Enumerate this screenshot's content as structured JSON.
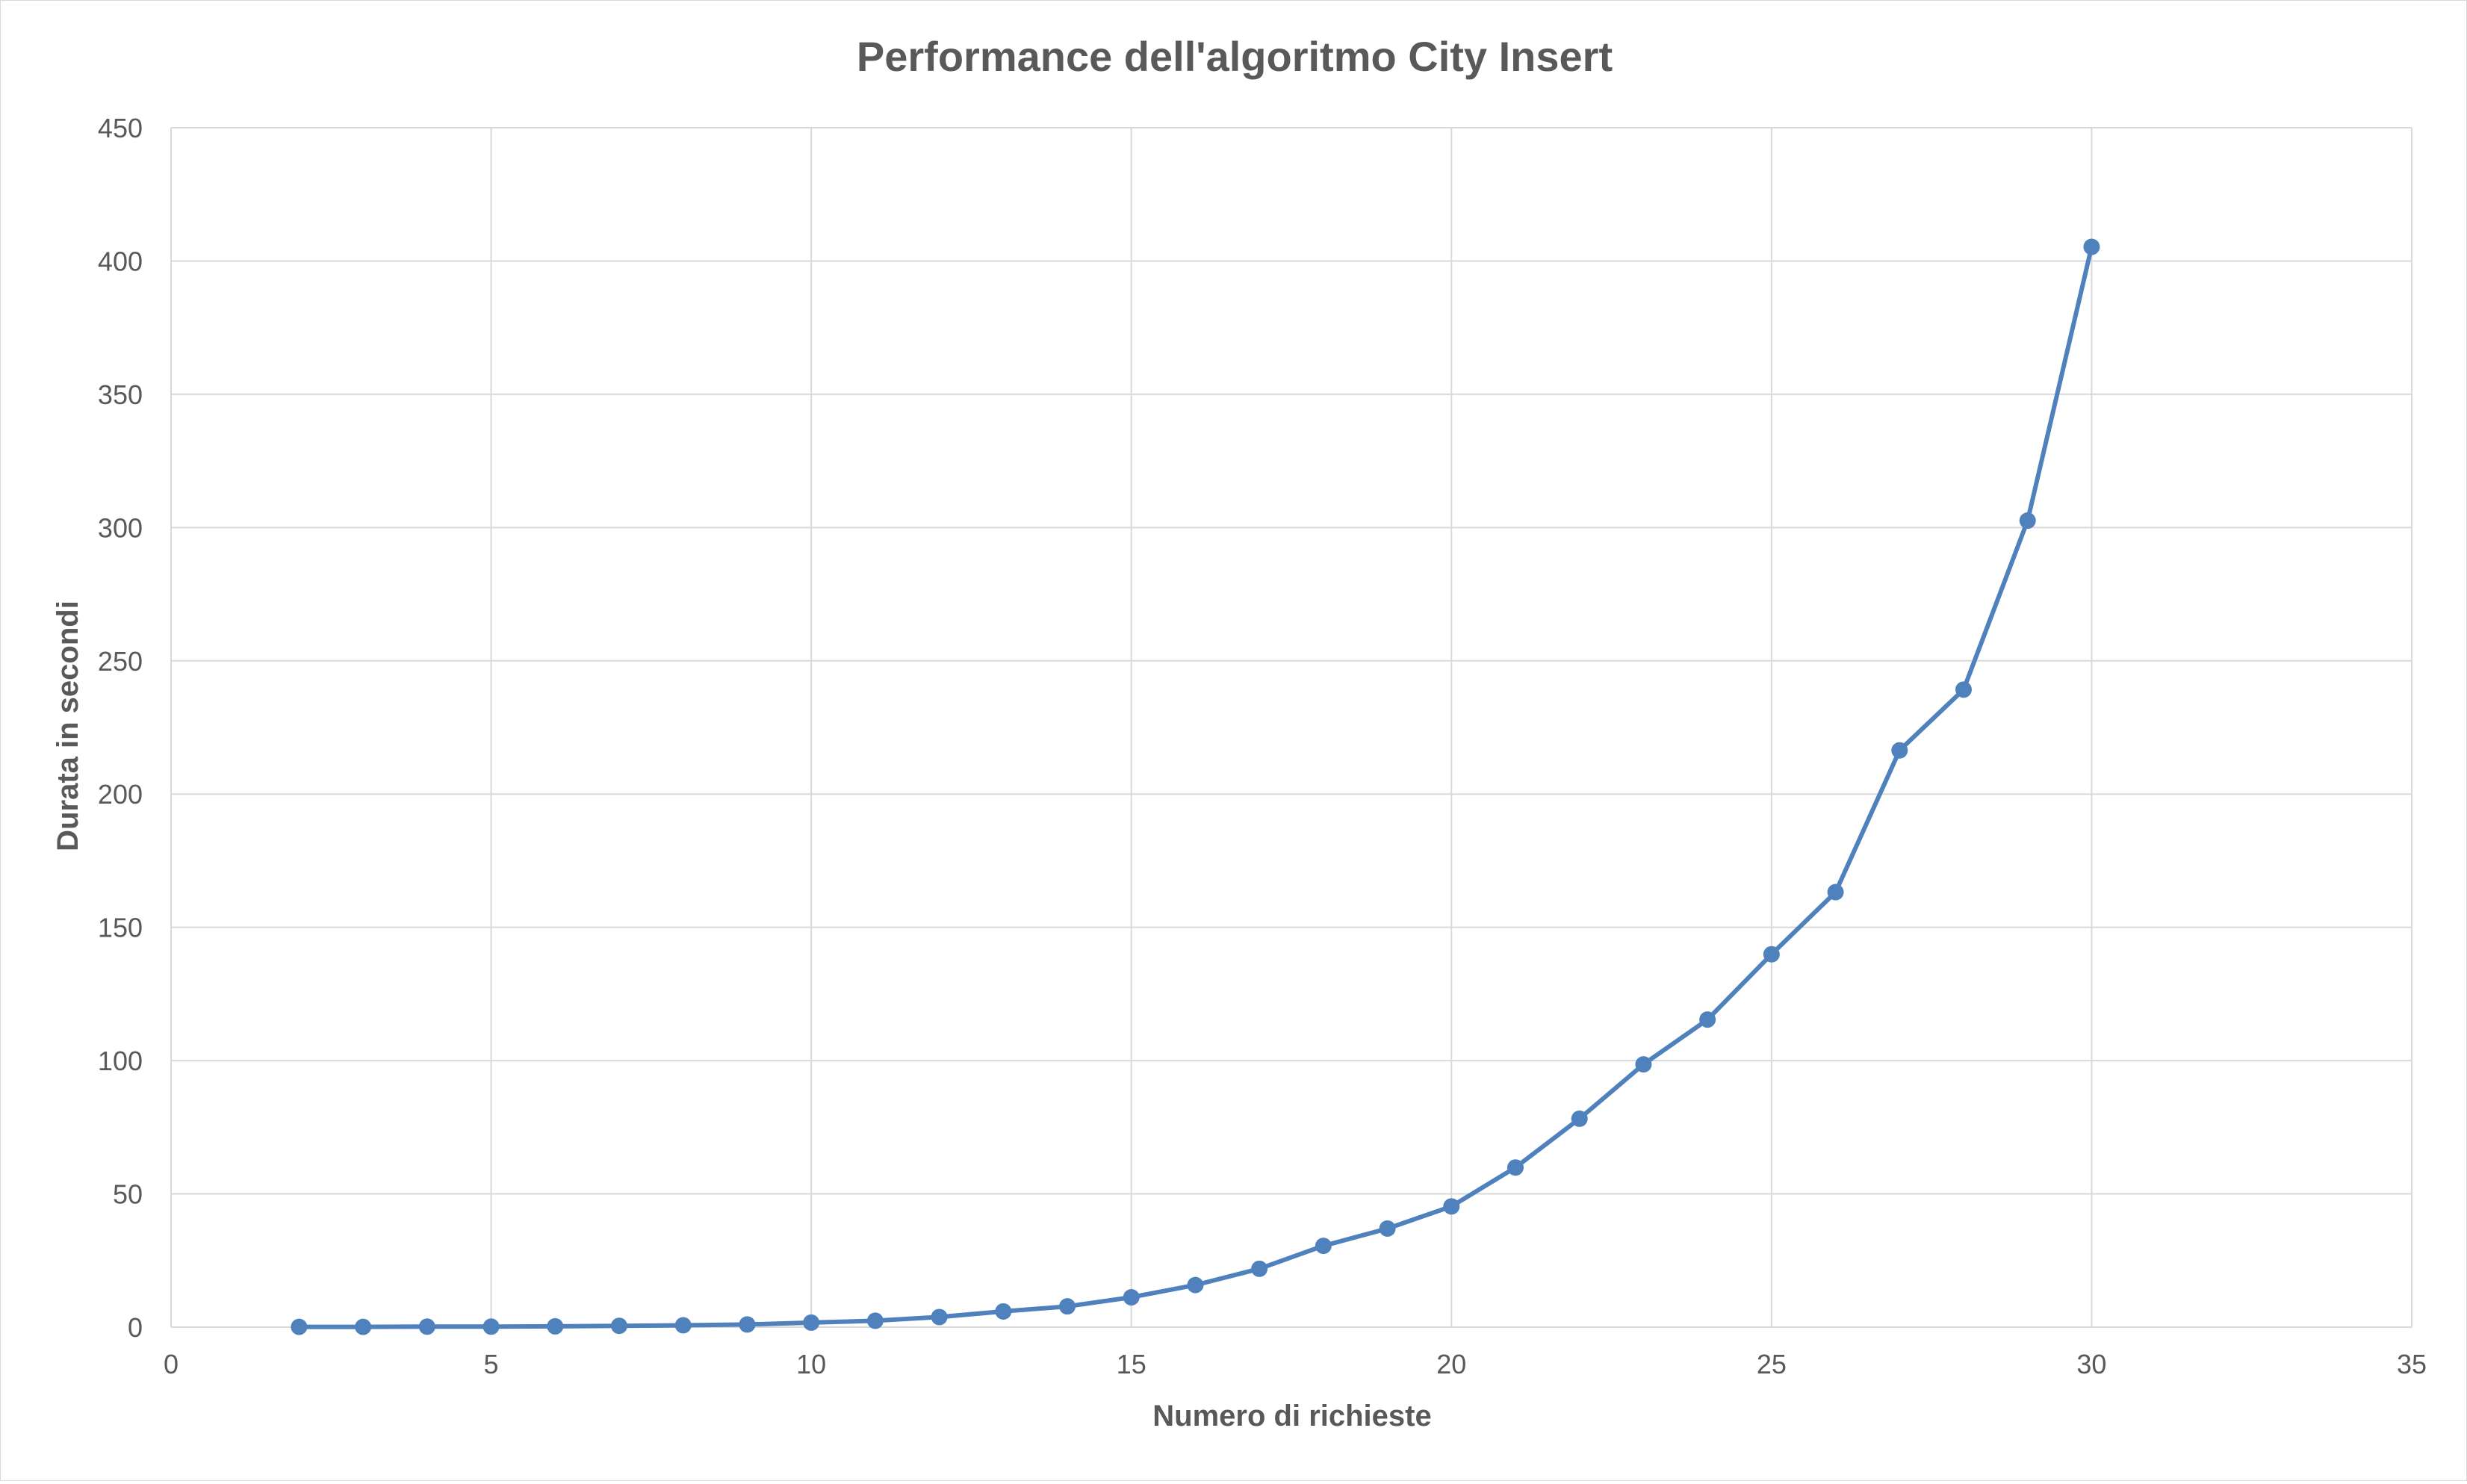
{
  "chart_data": {
    "type": "scatter",
    "title": "Performance dell'algoritmo City Insert",
    "xlabel": "Numero di richieste",
    "ylabel": "Durata in secondi",
    "xlim": [
      0,
      35
    ],
    "ylim": [
      0,
      450
    ],
    "xticks": [
      0,
      5,
      10,
      15,
      20,
      25,
      30,
      35
    ],
    "yticks": [
      0,
      50,
      100,
      150,
      200,
      250,
      300,
      350,
      400,
      450
    ],
    "grid": true,
    "legend": "none",
    "series": [
      {
        "color": "#4f81bd",
        "marker": "circle",
        "line": "straight",
        "points": [
          {
            "x": 2,
            "y": 0.1
          },
          {
            "x": 3,
            "y": 0.1
          },
          {
            "x": 4,
            "y": 0.2
          },
          {
            "x": 5,
            "y": 0.2
          },
          {
            "x": 6,
            "y": 0.3
          },
          {
            "x": 7,
            "y": 0.5
          },
          {
            "x": 8,
            "y": 0.7
          },
          {
            "x": 9,
            "y": 1.0
          },
          {
            "x": 10,
            "y": 1.7
          },
          {
            "x": 11,
            "y": 2.4
          },
          {
            "x": 12,
            "y": 3.8
          },
          {
            "x": 13,
            "y": 5.9
          },
          {
            "x": 14,
            "y": 7.8
          },
          {
            "x": 15,
            "y": 11.2
          },
          {
            "x": 16,
            "y": 15.8
          },
          {
            "x": 17,
            "y": 21.9
          },
          {
            "x": 18,
            "y": 30.5
          },
          {
            "x": 19,
            "y": 37.0
          },
          {
            "x": 20,
            "y": 45.3
          },
          {
            "x": 21,
            "y": 59.9
          },
          {
            "x": 22,
            "y": 78.2
          },
          {
            "x": 23,
            "y": 98.6
          },
          {
            "x": 24,
            "y": 115.4
          },
          {
            "x": 25,
            "y": 139.9
          },
          {
            "x": 26,
            "y": 163.2
          },
          {
            "x": 27,
            "y": 216.4
          },
          {
            "x": 28,
            "y": 239.2
          },
          {
            "x": 29,
            "y": 302.6
          },
          {
            "x": 30,
            "y": 405.3
          }
        ]
      }
    ]
  }
}
